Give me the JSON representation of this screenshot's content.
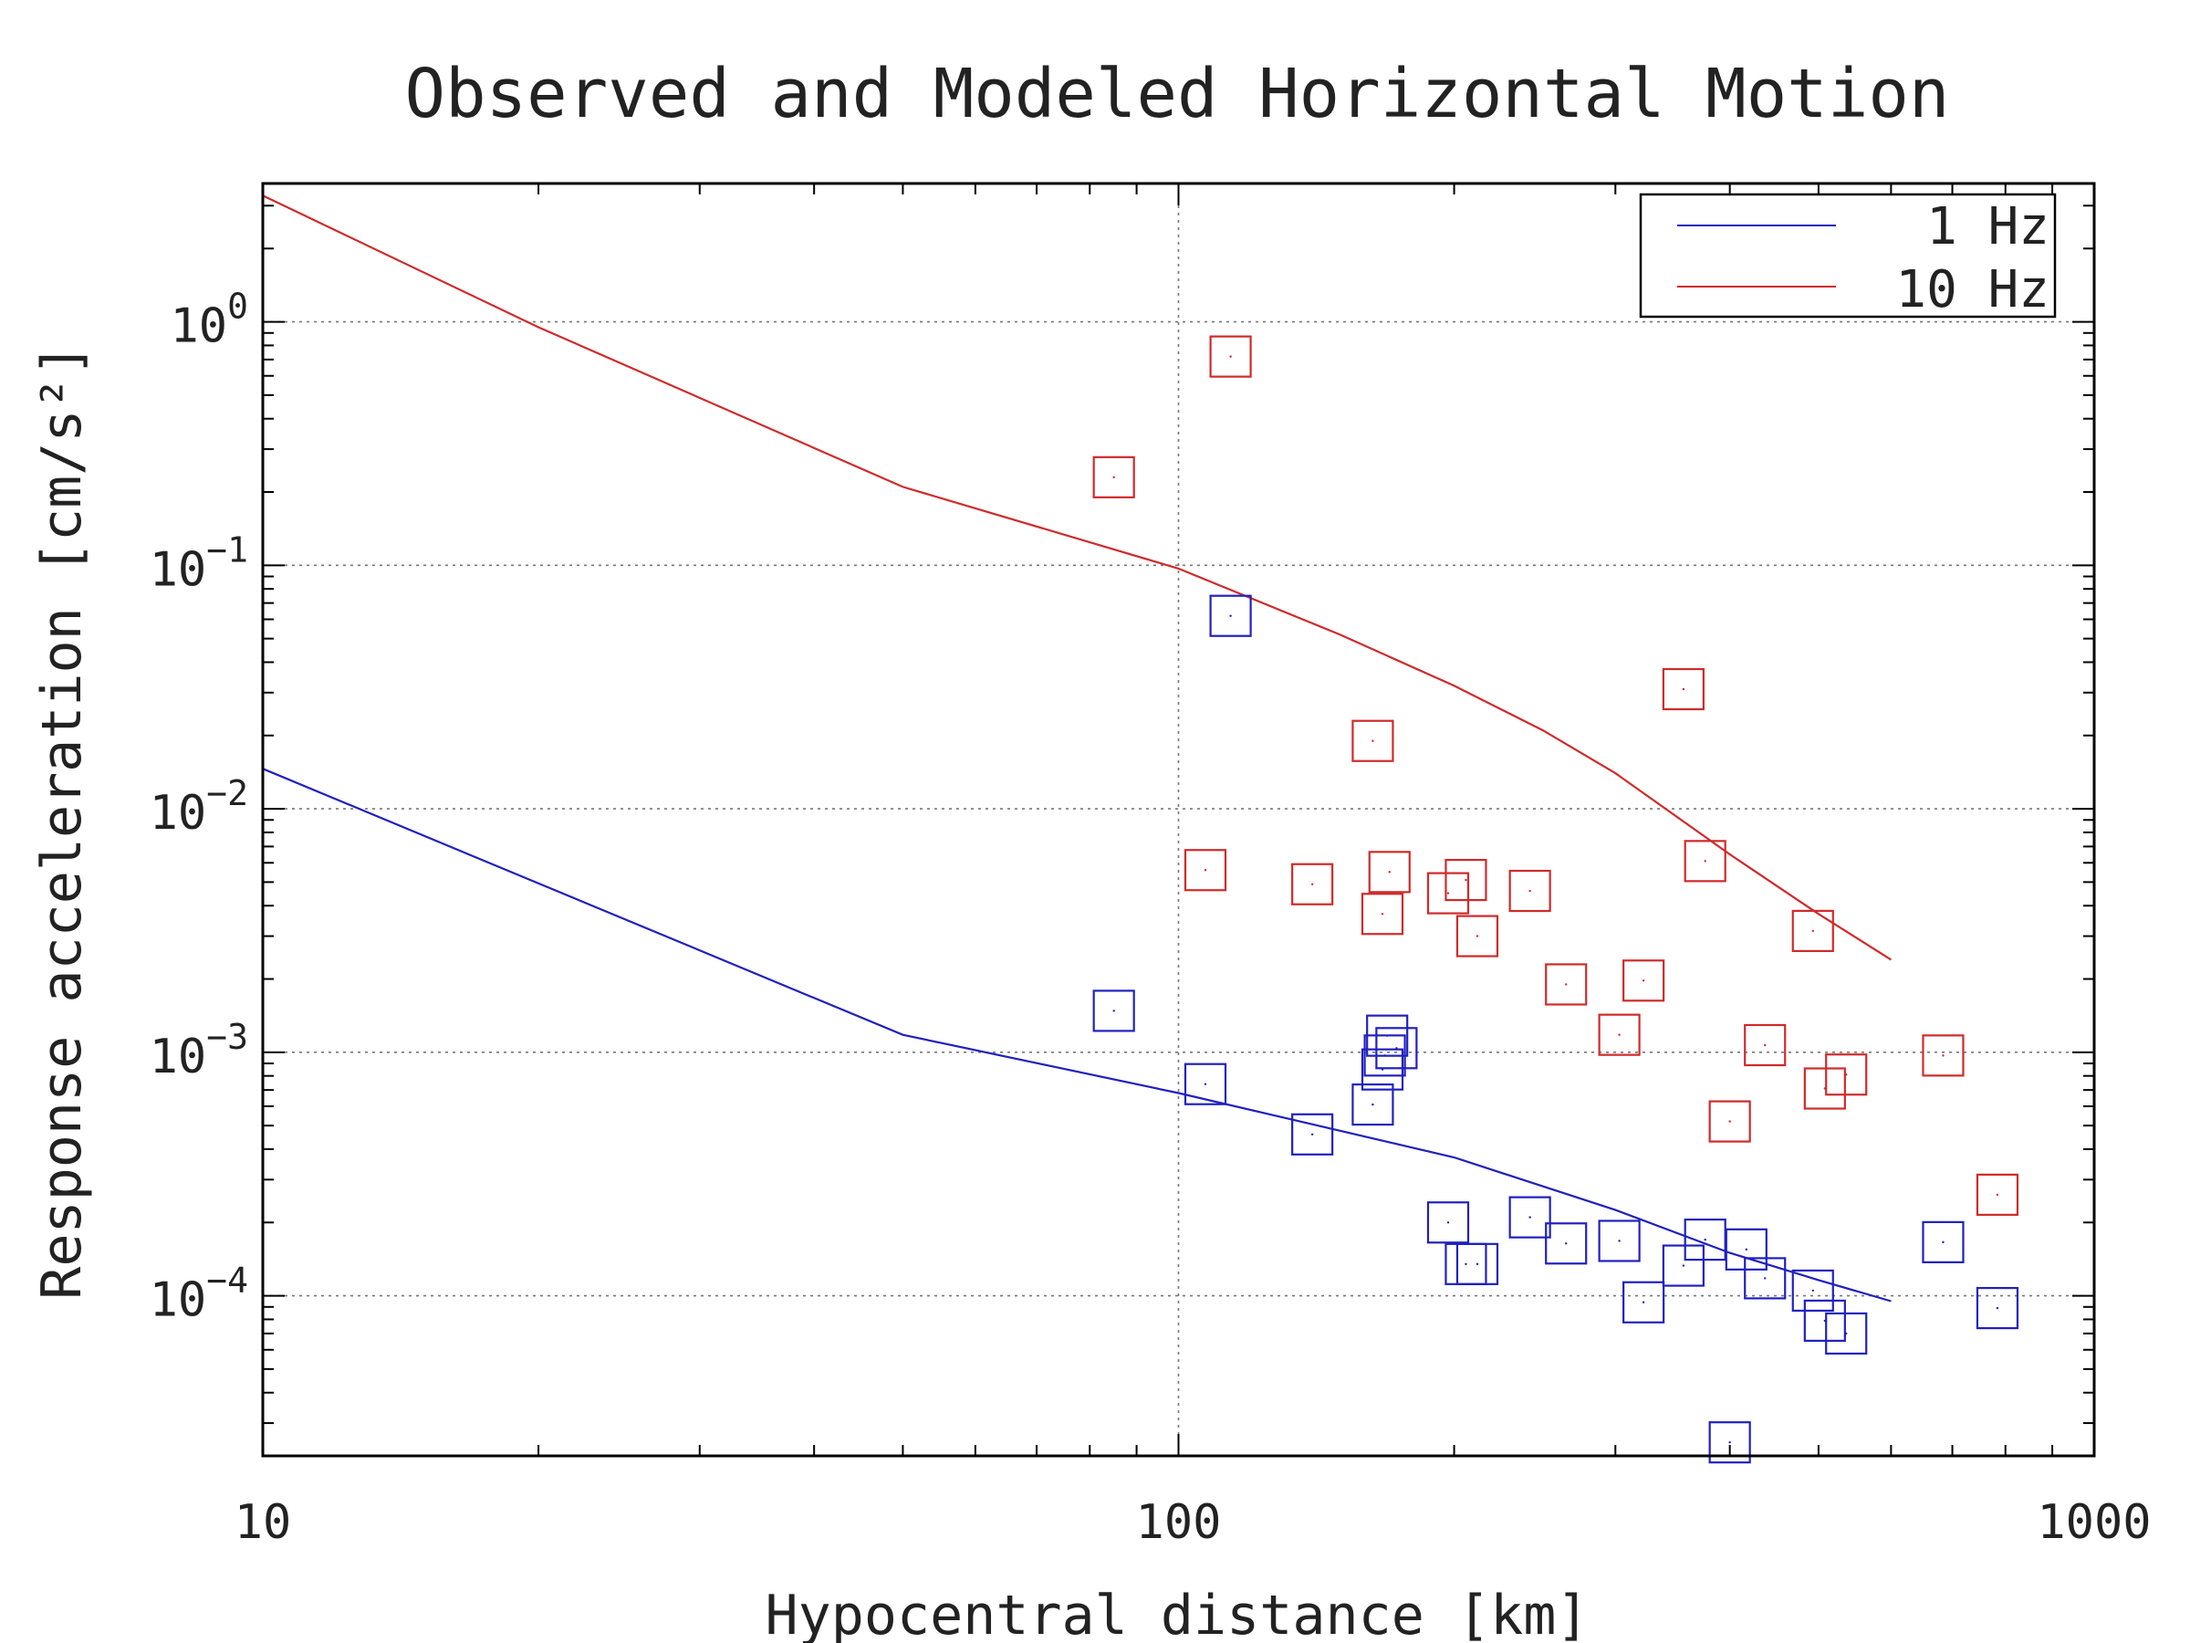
{
  "chart_data": {
    "type": "scatter",
    "title": "Observed and Modeled Horizontal Motion",
    "xlabel": "Hypocentral distance [km]",
    "ylabel": "Response acceleration [cm/s²]",
    "x_scale": "log",
    "y_scale": "log",
    "xlim": [
      10,
      1000
    ],
    "ylim": [
      2.2e-05,
      3.7
    ],
    "x_ticks": [
      10,
      100,
      1000
    ],
    "x_tick_labels": [
      "10",
      "100",
      "1000"
    ],
    "y_ticks": [
      0.0001,
      0.001,
      0.01,
      0.1,
      1
    ],
    "y_tick_labels": [
      {
        "base": "10",
        "exp": "−4"
      },
      {
        "base": "10",
        "exp": "−3"
      },
      {
        "base": "10",
        "exp": "−2"
      },
      {
        "base": "10",
        "exp": "−1"
      },
      {
        "base": "10",
        "exp": "0"
      }
    ],
    "grid": true,
    "legend_position": "top-right",
    "series": [
      {
        "name": "1 Hz",
        "color": "#2020c0",
        "model_line": {
          "x": [
            10,
            50,
            100,
            200,
            300,
            400,
            500,
            600
          ],
          "y": [
            0.0146,
            0.00118,
            0.00068,
            0.00037,
            0.000225,
            0.00015,
            0.000116,
            9.5e-05
          ]
        },
        "observations": {
          "x": [
            85,
            107,
            114,
            140,
            163,
            167,
            168,
            169,
            173,
            197,
            206,
            212,
            242,
            265,
            303,
            322,
            356,
            376,
            417,
            437,
            493,
            508,
            536,
            684,
            784,
            400
          ],
          "y": [
            0.00148,
            0.00074,
            0.062,
            0.00046,
            0.00061,
            0.00085,
            0.00097,
            0.00117,
            0.00104,
            0.0002,
            0.000135,
            0.000135,
            0.00021,
            0.000164,
            0.000168,
            9.4e-05,
            0.000133,
            0.00017,
            0.000155,
            0.000118,
            0.000105,
            7.9e-05,
            7e-05,
            0.000166,
            8.9e-05,
            2.5e-05
          ]
        }
      },
      {
        "name": "10 Hz",
        "color": "#d02a2a",
        "model_line": {
          "x": [
            10,
            20,
            50,
            100,
            150,
            200,
            250,
            300,
            400,
            500,
            600
          ],
          "y": [
            3.3,
            0.95,
            0.21,
            0.097,
            0.052,
            0.032,
            0.021,
            0.014,
            0.0065,
            0.0037,
            0.0024
          ]
        },
        "observations": {
          "x": [
            85,
            114,
            107,
            140,
            163,
            167,
            170,
            197,
            206,
            212,
            242,
            265,
            303,
            322,
            356,
            376,
            400,
            437,
            493,
            508,
            536,
            684,
            784
          ],
          "y": [
            0.23,
            0.72,
            0.0056,
            0.0049,
            0.019,
            0.0037,
            0.0055,
            0.0045,
            0.0051,
            0.003,
            0.0046,
            0.0019,
            0.00118,
            0.00197,
            0.031,
            0.0061,
            0.00052,
            0.00107,
            0.00315,
            0.00071,
            0.00081,
            0.00097,
            0.00026
          ]
        }
      }
    ]
  }
}
